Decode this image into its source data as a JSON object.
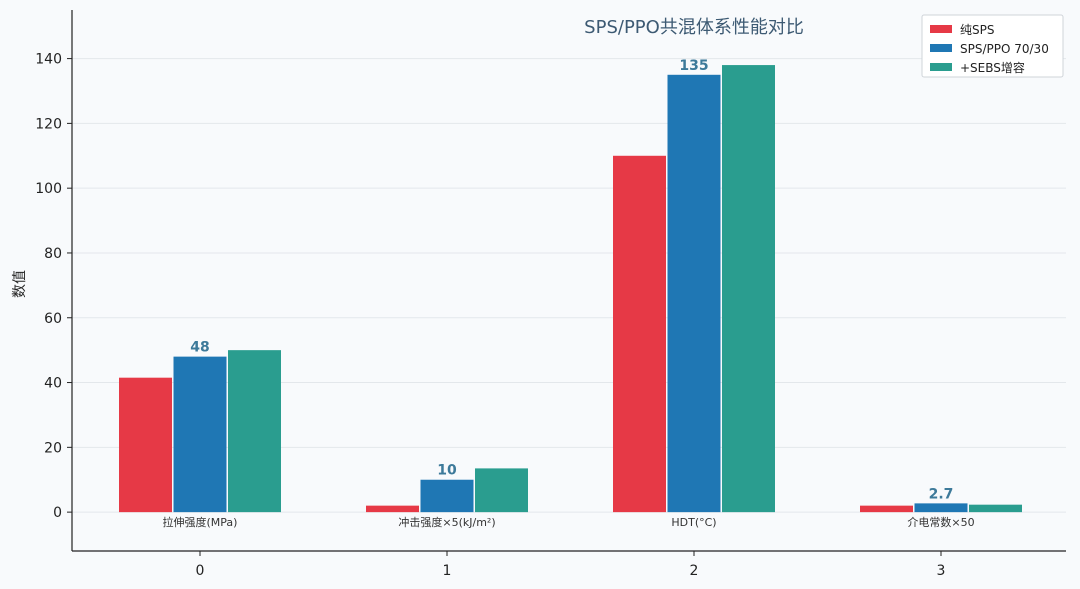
{
  "chart_data": {
    "type": "bar",
    "title": "SPS/PPO共混体系性能对比",
    "ylabel": "数值",
    "xlabel": "",
    "x_ticks": [
      "0",
      "1",
      "2",
      "3"
    ],
    "categories": [
      "拉伸强度(MPa)",
      "冲击强度×5(kJ/m²)",
      "HDT(°C)",
      "介电常数×50"
    ],
    "ylim": [
      -12,
      155
    ],
    "y_ticks": [
      0,
      20,
      40,
      60,
      80,
      100,
      120,
      140
    ],
    "grid": true,
    "legend_position": "top-right",
    "series": [
      {
        "name": "纯SPS",
        "color": "#e63946",
        "values": [
          41.5,
          2,
          110,
          2
        ]
      },
      {
        "name": "SPS/PPO 70/30",
        "color": "#1f77b4",
        "values": [
          48,
          10,
          135,
          2.7
        ]
      },
      {
        "name": "+SEBS增容",
        "color": "#2a9d8f",
        "values": [
          50,
          13.5,
          138,
          2.3
        ]
      }
    ],
    "data_labels": [
      {
        "category_index": 0,
        "series_index": 1,
        "text": "48"
      },
      {
        "category_index": 1,
        "series_index": 1,
        "text": "10"
      },
      {
        "category_index": 2,
        "series_index": 1,
        "text": "135"
      },
      {
        "category_index": 3,
        "series_index": 1,
        "text": "2.7"
      }
    ]
  }
}
